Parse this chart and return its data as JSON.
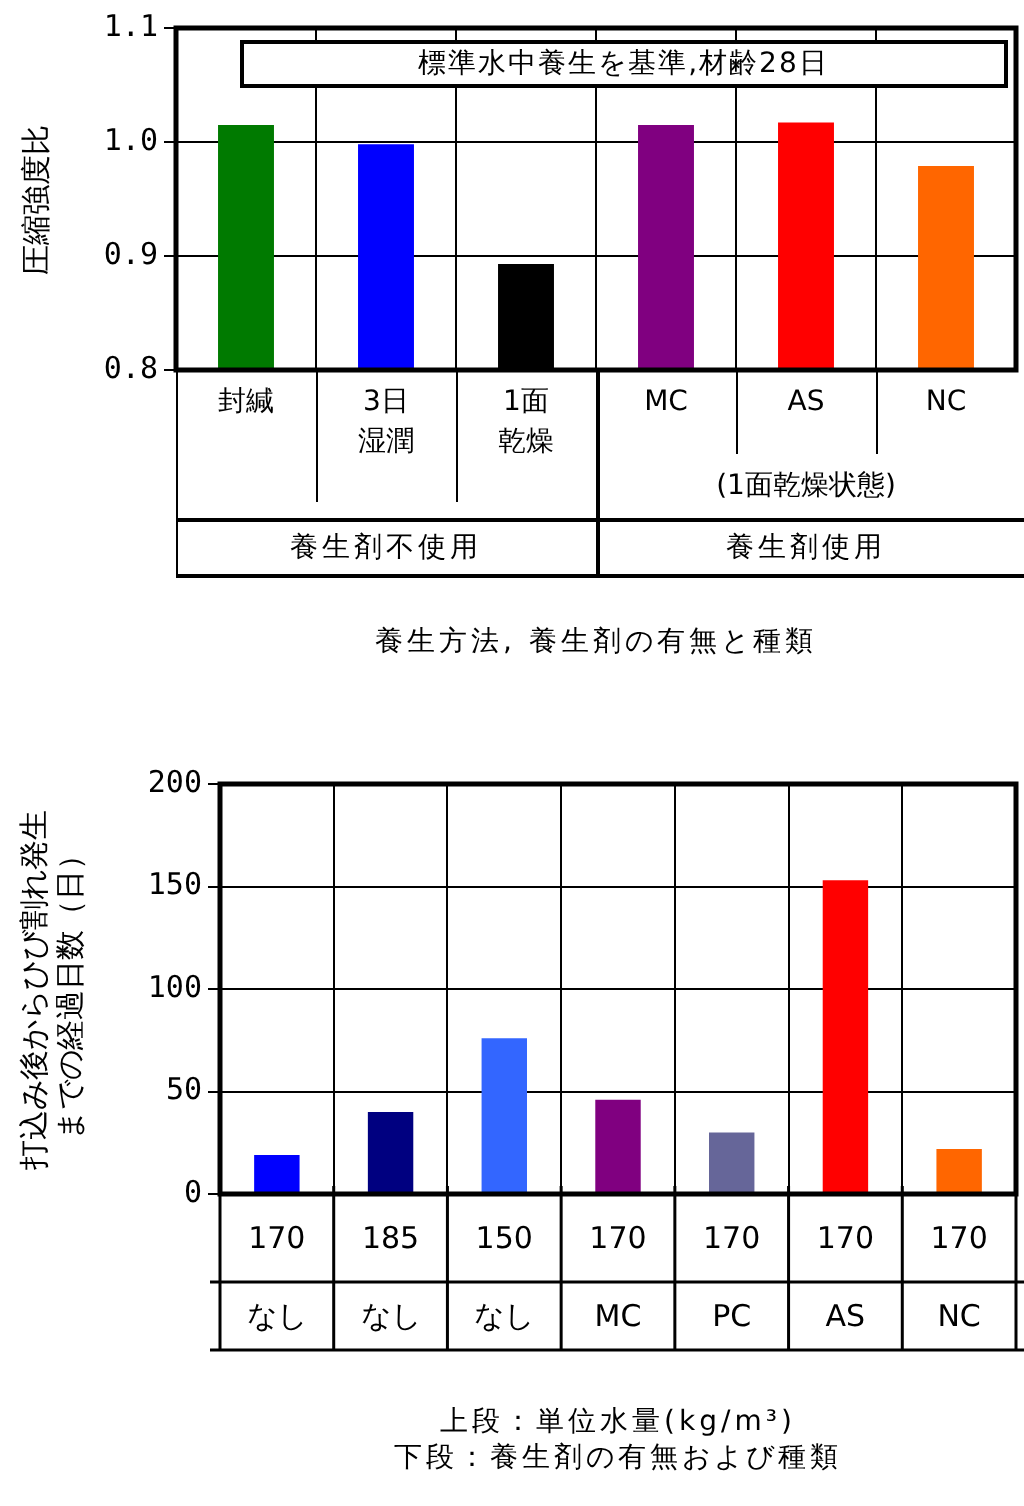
{
  "chart_data": [
    {
      "type": "bar",
      "title": "標準水中養生を基準,材齢28日",
      "ylabel": "圧縮強度比",
      "xlabel": "養生方法, 養生剤の有無と種類",
      "categories": [
        "封緘",
        "3日湿潤",
        "1面乾燥",
        "MC",
        "AS",
        "NC"
      ],
      "values": [
        1.015,
        0.998,
        0.893,
        1.015,
        1.017,
        0.979
      ],
      "colors": [
        "#007a00",
        "#0000ff",
        "#000000",
        "#800080",
        "#ff0000",
        "#ff6600"
      ],
      "ylim": [
        0.8,
        1.1
      ],
      "yticks": [
        0.8,
        0.9,
        {
          "value": 1.0,
          "label": "1.0"
        },
        1.1
      ],
      "grid": true,
      "annotations": [
        "(1面乾燥状態)",
        "養生剤不使用",
        "養生剤使用"
      ]
    },
    {
      "type": "bar",
      "ylabel": "打込み後からひび割れ発生までの経過日数（日）",
      "xlabel": "上段：単位水量(kg/m³)\n下段：養生剤の有無および種類",
      "categories": [
        "170\nなし",
        "185\nなし",
        "150\nなし",
        "170\nMC",
        "170\nPC",
        "170\nAS",
        "170\nNC"
      ],
      "values": [
        19,
        40,
        76,
        46,
        30,
        153,
        22
      ],
      "colors": [
        "#0000ff",
        "#000080",
        "#3366ff",
        "#800080",
        "#666699",
        "#ff0000",
        "#ff6600"
      ],
      "ylim": [
        0,
        200
      ],
      "yticks": [
        0,
        50,
        100,
        150,
        200
      ],
      "grid": true
    }
  ]
}
